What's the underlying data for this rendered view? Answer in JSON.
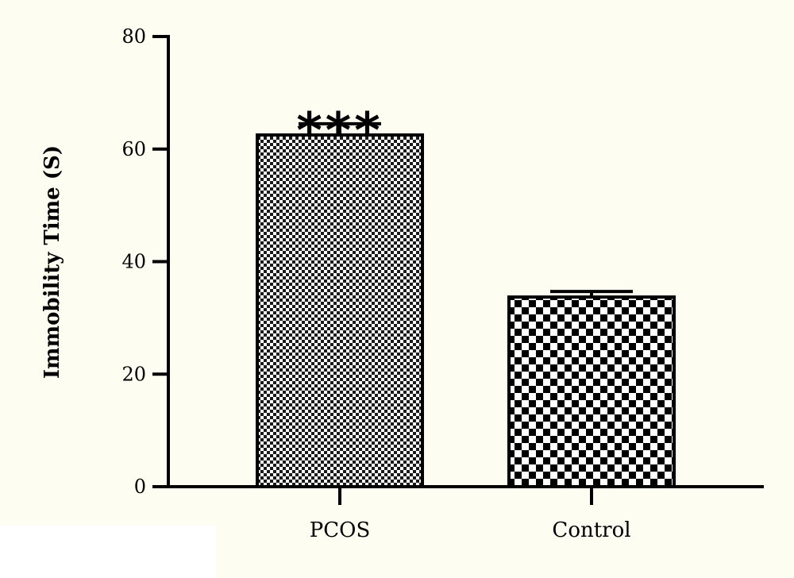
{
  "chart_data": {
    "type": "bar",
    "categories": [
      "PCOS",
      "Control"
    ],
    "values": [
      62.5,
      33.7
    ],
    "errors": [
      2.0,
      1.0
    ],
    "annotations": [
      "***",
      ""
    ],
    "ylabel": "Immobility Time (S)",
    "xlabel": "",
    "title": "",
    "ylim": [
      0,
      80
    ],
    "yticks": [
      0,
      20,
      40,
      60,
      80
    ],
    "grid": false,
    "legend": "none",
    "colors": {
      "background": "#fdfdf2",
      "bar_fill": "#ffffff",
      "bar_pattern": "#000000",
      "axis": "#000000"
    }
  }
}
